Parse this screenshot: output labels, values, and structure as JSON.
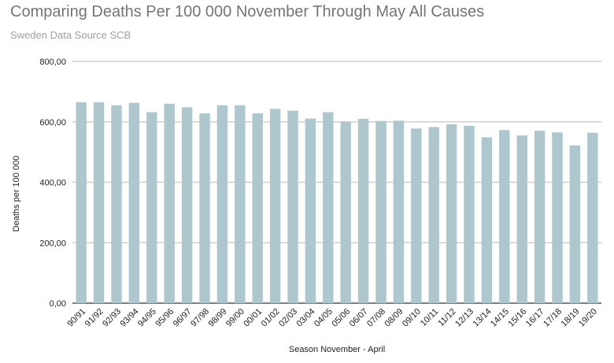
{
  "chart_data": {
    "type": "bar",
    "title": "Comparing Deaths Per 100 000 November Through May All Causes",
    "subtitle": "Sweden Data Source SCB",
    "xlabel": "Season November - April",
    "ylabel": "Deaths per 100 000",
    "ylim": [
      0,
      800
    ],
    "yticks": [
      "0,00",
      "200,00",
      "400,00",
      "600,00",
      "800,00"
    ],
    "grid": true,
    "bar_color": "#aec7ce",
    "categories": [
      "90/91",
      "91/92",
      "92/93",
      "93/94",
      "94/95",
      "95/96",
      "96/97",
      "97/98",
      "98/99",
      "99/00",
      "00/01",
      "01/02",
      "02/03",
      "03/04",
      "04/05",
      "05/06",
      "06/07",
      "07/08",
      "08/09",
      "09/10",
      "10/11",
      "11/12",
      "12/13",
      "13/14",
      "14/15",
      "15/16",
      "16/17",
      "17/18",
      "18/19",
      "19/20"
    ],
    "values": [
      665,
      665,
      655,
      663,
      632,
      660,
      648,
      628,
      655,
      655,
      628,
      643,
      637,
      611,
      632,
      600,
      610,
      603,
      604,
      578,
      583,
      592,
      587,
      549,
      573,
      555,
      571,
      565,
      522,
      564
    ]
  }
}
